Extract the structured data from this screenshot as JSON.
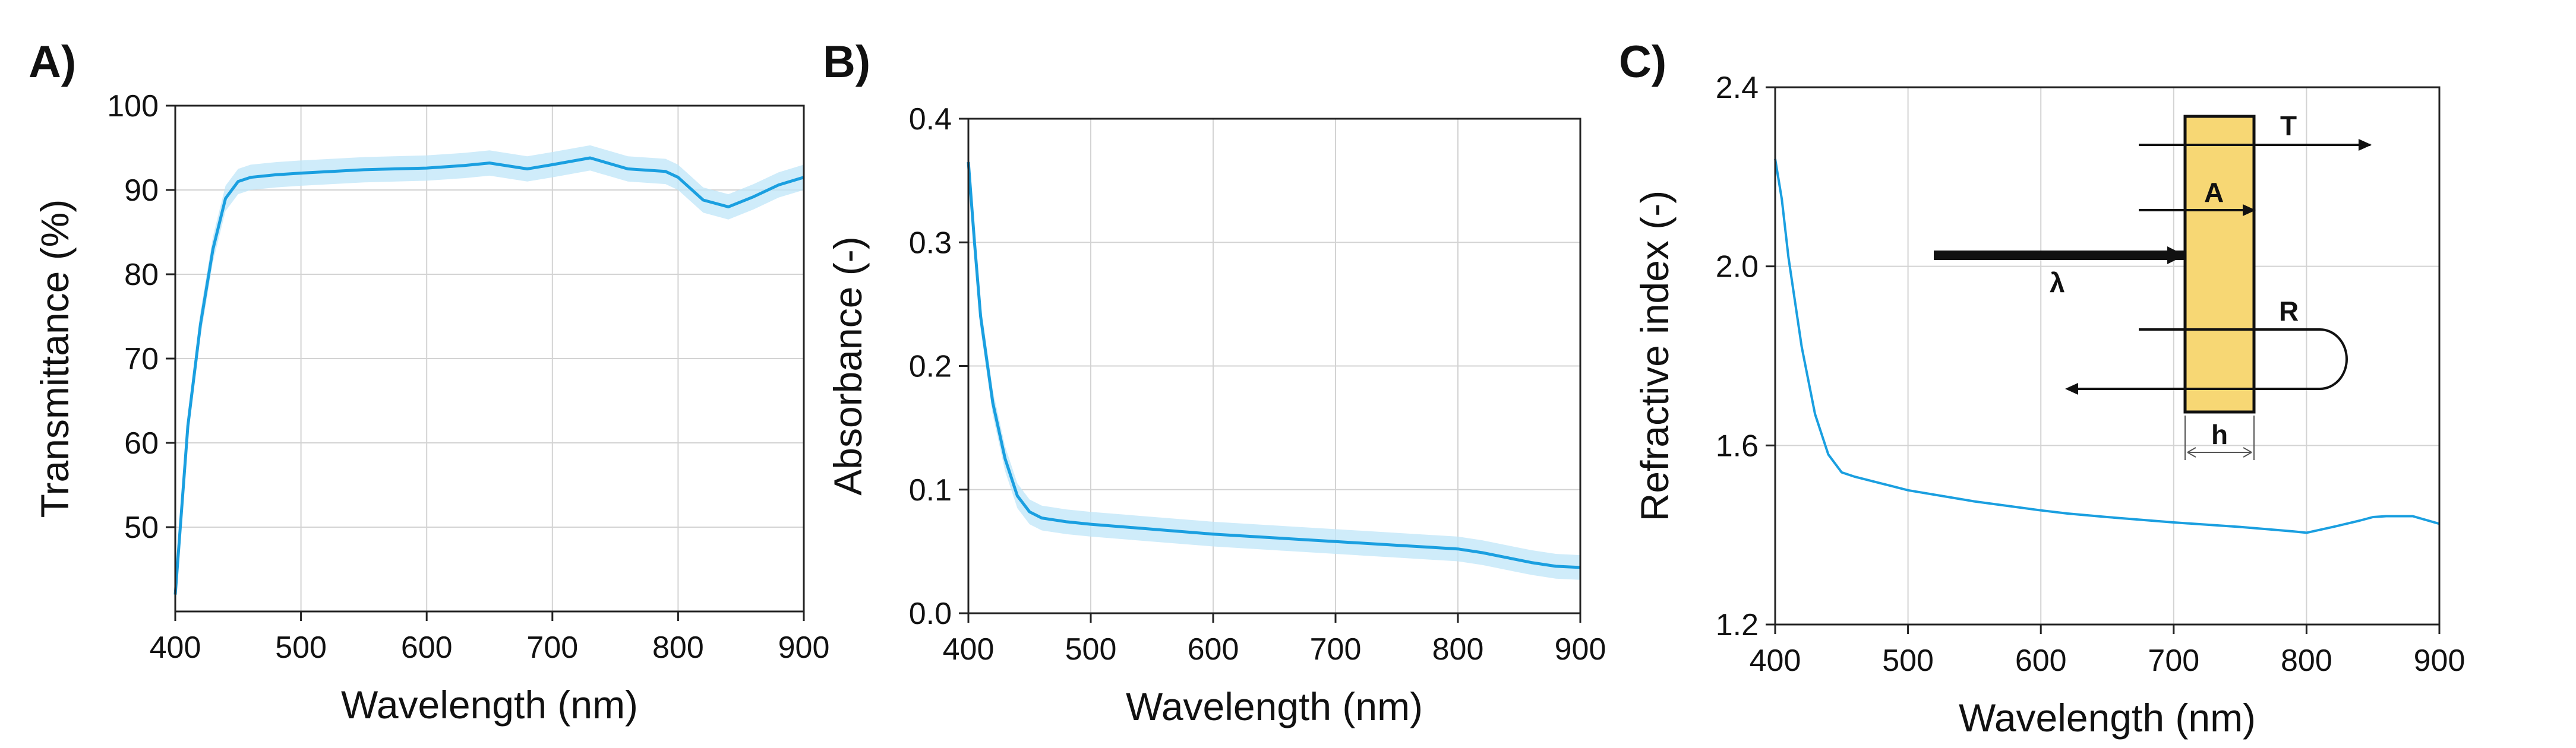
{
  "figure": {
    "accent_color": "#1a9fe0",
    "band_color": "#bfe6f8",
    "layer_fill": "#f7d774"
  },
  "chart_data": [
    {
      "id": "A",
      "panel_label": "A)",
      "type": "line",
      "title": "",
      "xlabel": "Wavelength (nm)",
      "ylabel": "Transmittance (%)",
      "xlim": [
        400,
        900
      ],
      "ylim": [
        40,
        100
      ],
      "xticks": [
        400,
        500,
        600,
        700,
        800,
        900
      ],
      "yticks": [
        50,
        60,
        70,
        80,
        90,
        100
      ],
      "tick_labels_x": [
        "400",
        "500",
        "600",
        "700",
        "800",
        "900"
      ],
      "tick_labels_y": [
        "50",
        "60",
        "70",
        "80",
        "90",
        "100"
      ],
      "grid": true,
      "band": 1.5,
      "series": [
        {
          "name": "Transmittance",
          "x": [
            400,
            405,
            410,
            420,
            430,
            440,
            450,
            460,
            480,
            500,
            550,
            600,
            630,
            650,
            680,
            700,
            730,
            760,
            790,
            800,
            820,
            840,
            860,
            880,
            900
          ],
          "y": [
            42,
            52,
            62,
            74,
            83,
            89,
            91,
            91.5,
            91.8,
            92,
            92.4,
            92.6,
            92.9,
            93.2,
            92.5,
            93.0,
            93.8,
            92.5,
            92.2,
            91.5,
            88.8,
            88.0,
            89.2,
            90.6,
            91.5
          ]
        }
      ]
    },
    {
      "id": "B",
      "panel_label": "B)",
      "type": "line",
      "title": "",
      "xlabel": "Wavelength (nm)",
      "ylabel": "Absorbance (-)",
      "xlim": [
        400,
        900
      ],
      "ylim": [
        0.0,
        0.4
      ],
      "xticks": [
        400,
        500,
        600,
        700,
        800,
        900
      ],
      "yticks": [
        0.0,
        0.1,
        0.2,
        0.3,
        0.4
      ],
      "tick_labels_x": [
        "400",
        "500",
        "600",
        "700",
        "800",
        "900"
      ],
      "tick_labels_y": [
        "0.0",
        "0.1",
        "0.2",
        "0.3",
        "0.4"
      ],
      "grid": true,
      "band": 0.01,
      "series": [
        {
          "name": "Absorbance",
          "x": [
            400,
            405,
            410,
            420,
            430,
            440,
            450,
            460,
            480,
            500,
            550,
            600,
            650,
            700,
            750,
            800,
            820,
            840,
            860,
            880,
            900
          ],
          "y": [
            0.365,
            0.3,
            0.24,
            0.17,
            0.125,
            0.095,
            0.082,
            0.077,
            0.074,
            0.072,
            0.068,
            0.064,
            0.061,
            0.058,
            0.055,
            0.052,
            0.049,
            0.045,
            0.041,
            0.038,
            0.037
          ]
        }
      ]
    },
    {
      "id": "C",
      "panel_label": "C)",
      "type": "line",
      "title": "",
      "xlabel": "Wavelength (nm)",
      "ylabel": "Refractive index (-)",
      "xlim": [
        400,
        900
      ],
      "ylim": [
        1.2,
        2.4
      ],
      "xticks": [
        400,
        500,
        600,
        700,
        800,
        900
      ],
      "yticks": [
        1.2,
        1.6,
        2.0,
        2.4
      ],
      "tick_labels_x": [
        "400",
        "500",
        "600",
        "700",
        "800",
        "900"
      ],
      "tick_labels_y": [
        "1.2",
        "1.6",
        "2.0",
        "2.4"
      ],
      "grid": true,
      "band": 0,
      "series": [
        {
          "name": "Refractive index",
          "x": [
            400,
            405,
            410,
            420,
            430,
            440,
            450,
            460,
            480,
            500,
            550,
            600,
            620,
            650,
            700,
            750,
            790,
            800,
            820,
            840,
            850,
            860,
            880,
            900
          ],
          "y": [
            2.24,
            2.15,
            2.02,
            1.82,
            1.67,
            1.58,
            1.54,
            1.53,
            1.515,
            1.5,
            1.475,
            1.455,
            1.448,
            1.44,
            1.428,
            1.418,
            1.408,
            1.405,
            1.418,
            1.432,
            1.44,
            1.442,
            1.442,
            1.425
          ]
        }
      ],
      "inset": {
        "labels": {
          "T": "T",
          "A": "A",
          "R": "R",
          "lambda": "λ",
          "h": "h"
        }
      }
    }
  ]
}
